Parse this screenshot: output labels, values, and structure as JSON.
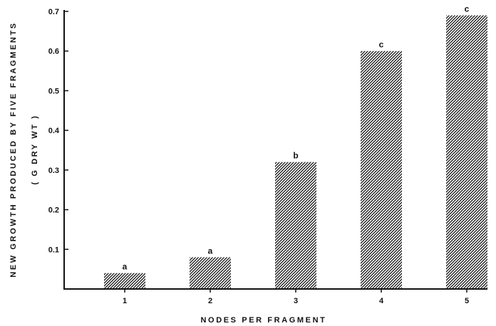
{
  "chart_data": {
    "type": "bar",
    "title": "",
    "xlabel": "NODES PER FRAGMENT",
    "ylabel": "NEW GROWTH PRODUCED BY FIVE FRAGMENTS",
    "ylabel_unit": "( G DRY WT )",
    "categories": [
      "1",
      "2",
      "3",
      "4",
      "5"
    ],
    "values": [
      0.04,
      0.08,
      0.32,
      0.6,
      0.69
    ],
    "significance_labels": [
      "a",
      "a",
      "b",
      "c",
      "c"
    ],
    "yticks": [
      "0.1",
      "0.2",
      "0.3",
      "0.4",
      "0.5",
      "0.6",
      "0.7"
    ],
    "ylim": [
      0,
      0.7
    ],
    "grid": false,
    "legend": "none",
    "bar_fill": "diagonal-hatch",
    "color": "#111111"
  }
}
